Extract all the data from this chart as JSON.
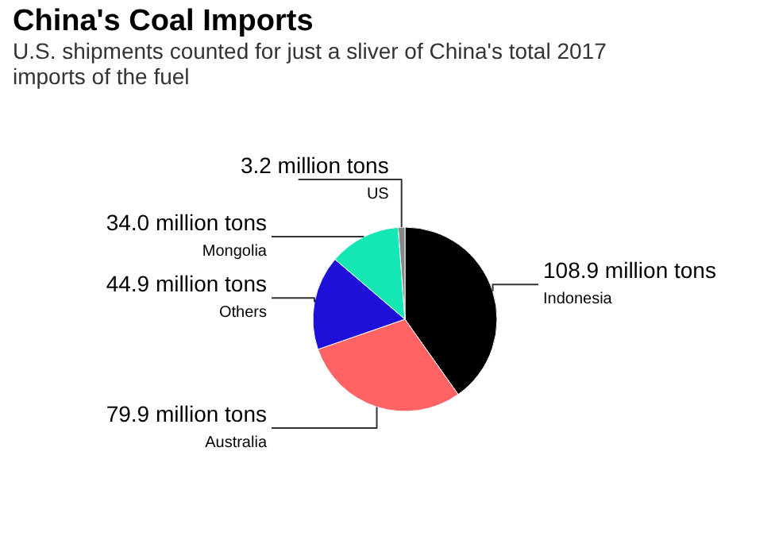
{
  "chart_data": {
    "type": "pie",
    "title": "China's Coal Imports",
    "subtitle": "U.S. shipments counted for just a sliver of China's total 2017 imports of the fuel",
    "categories": [
      "Indonesia",
      "Australia",
      "Others",
      "Mongolia",
      "US"
    ],
    "values": [
      108.9,
      79.9,
      44.9,
      34.0,
      3.2
    ],
    "colors": [
      "#000000",
      "#ff6363",
      "#1e10d8",
      "#14e6b4",
      "#888888"
    ],
    "value_labels": [
      "108.9 million tons",
      "79.9 million tons",
      "44.9 million tons",
      "34.0 million tons",
      "3.2 million tons"
    ],
    "legend": false
  }
}
